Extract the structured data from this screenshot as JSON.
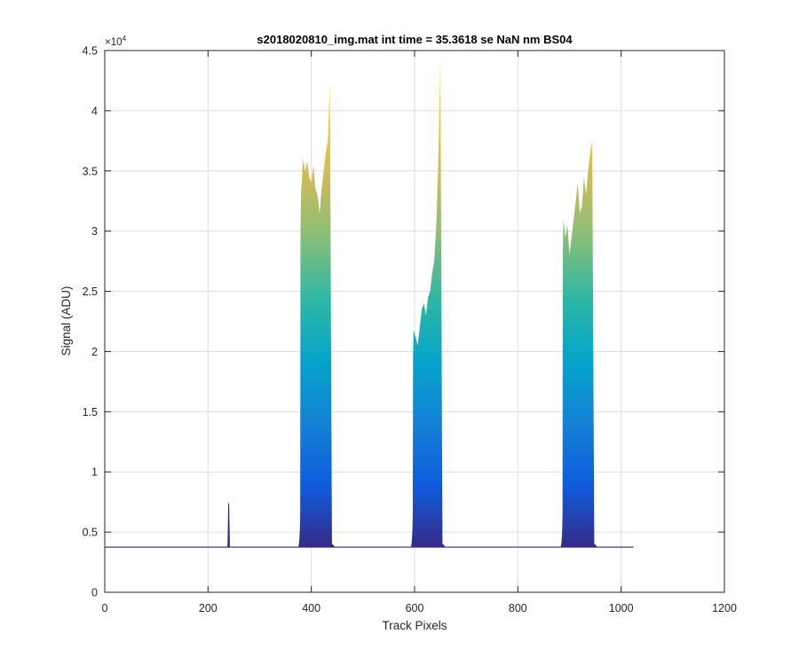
{
  "chart_data": {
    "type": "area",
    "title": "s2018020810_img.mat int time = 35.3618 se  NaN nm BS04",
    "xlabel": "Track Pixels",
    "ylabel": "Signal (ADU)",
    "y_exponent_base": "×10",
    "y_exponent_power": "4",
    "xlim": [
      0,
      1200
    ],
    "ylim": [
      0,
      45000
    ],
    "grid": true,
    "x_ticks": [
      0,
      200,
      400,
      600,
      800,
      1000,
      1200
    ],
    "x_tick_labels": [
      "0",
      "200",
      "400",
      "600",
      "800",
      "1000",
      "1200"
    ],
    "y_ticks": [
      0,
      5000,
      10000,
      15000,
      20000,
      25000,
      30000,
      35000,
      40000,
      45000
    ],
    "y_tick_labels": [
      "0",
      "0.5",
      "1",
      "1.5",
      "2",
      "2.5",
      "3",
      "3.5",
      "4",
      "4.5"
    ],
    "colormap": [
      "#352a87",
      "#0f5cdd",
      "#1481d6",
      "#06a4ca",
      "#2eb7a4",
      "#87bf77",
      "#d1bb59",
      "#fec832",
      "#f9fb0e"
    ],
    "x_range": [
      1,
      1024
    ],
    "baseline": 3750,
    "spike": {
      "x": 240,
      "y": 7400
    },
    "series": [
      {
        "x": [
          380,
          384,
          388,
          392,
          396,
          400,
          404,
          408,
          412,
          416,
          420,
          424,
          428,
          432,
          436,
          440
        ],
        "values": [
          33000,
          36000,
          35000,
          35800,
          34500,
          34000,
          35500,
          33500,
          33000,
          31500,
          33500,
          35000,
          36500,
          37500,
          42300,
          4000
        ]
      },
      {
        "x": [
          598,
          602,
          606,
          610,
          614,
          618,
          622,
          626,
          630,
          634,
          638,
          642,
          646,
          650,
          654
        ],
        "values": [
          21800,
          21200,
          20500,
          22000,
          23500,
          24000,
          23000,
          24500,
          25000,
          26500,
          27500,
          30500,
          36000,
          44500,
          4000
        ]
      },
      {
        "x": [
          888,
          892,
          896,
          900,
          904,
          908,
          912,
          916,
          920,
          924,
          928,
          932,
          936,
          940,
          944,
          948
        ],
        "values": [
          31000,
          29500,
          30500,
          28000,
          29500,
          31000,
          32500,
          34000,
          31500,
          32000,
          34500,
          33000,
          35000,
          36500,
          37500,
          4000
        ]
      }
    ]
  }
}
